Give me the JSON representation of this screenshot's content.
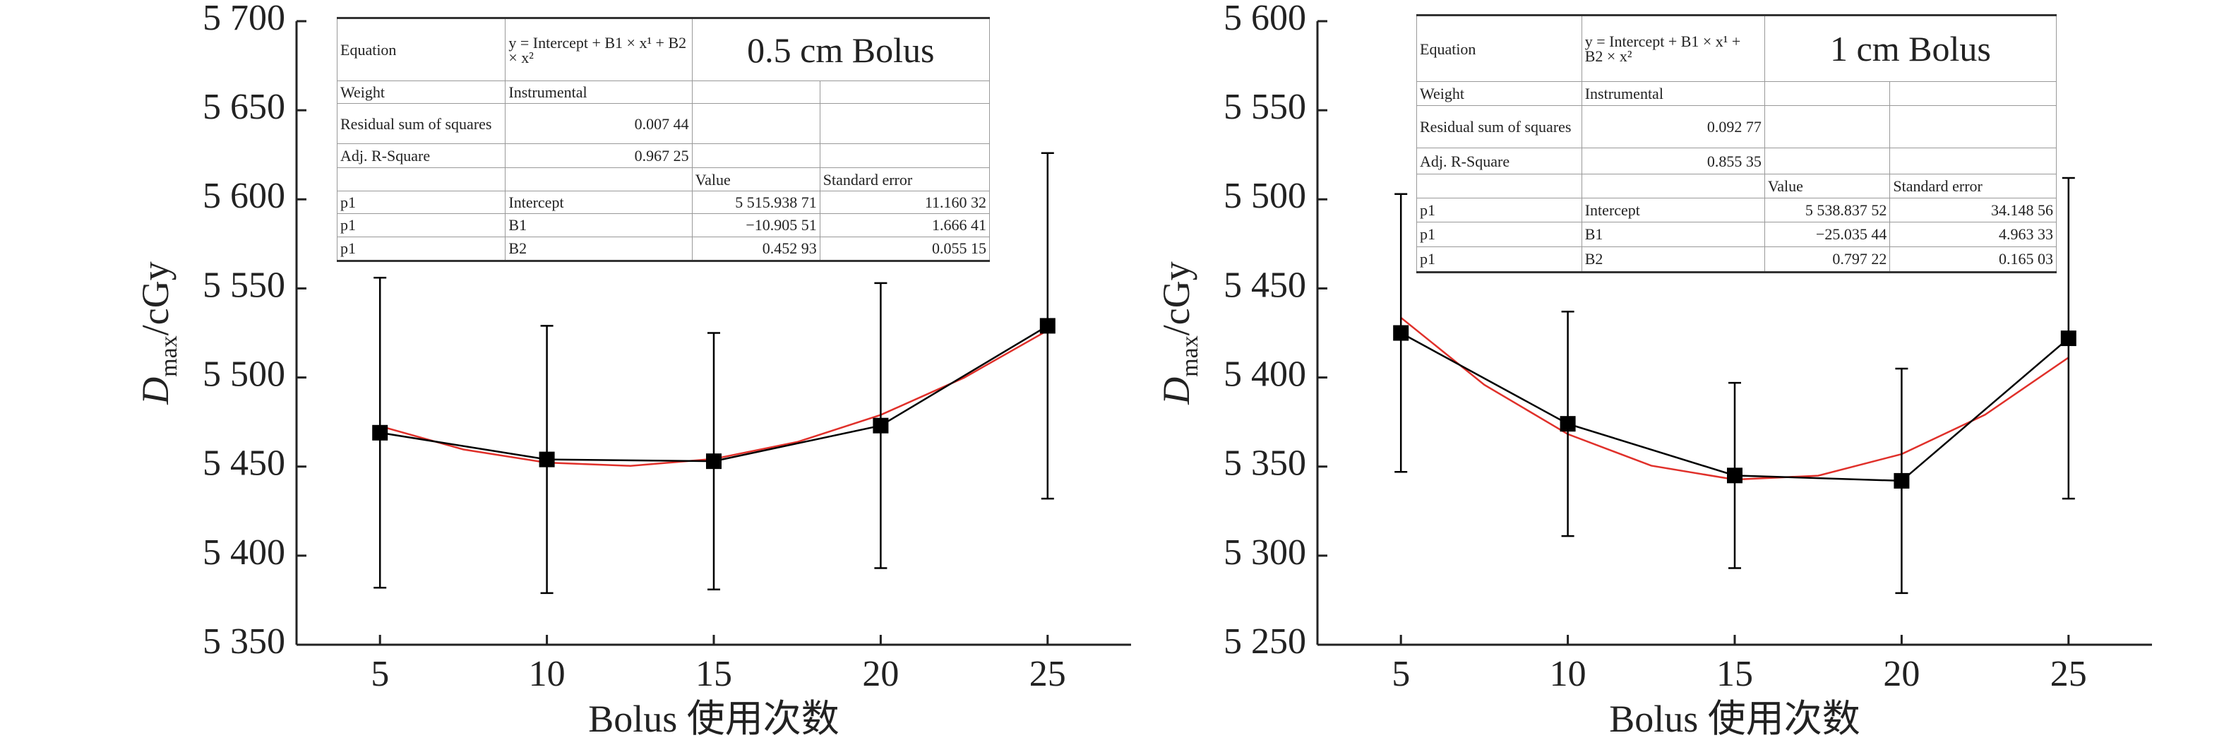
{
  "chart_data": [
    {
      "type": "line",
      "title": "0.5 cm Bolus",
      "xlabel": "Bolus 使用次数",
      "ylabel": {
        "symbol": "D",
        "subscript": "max",
        "unit": "/cGy"
      },
      "xlim": [
        2.5,
        27.5
      ],
      "xticks": [
        5,
        10,
        15,
        20,
        25
      ],
      "ylim": [
        5350,
        5700
      ],
      "yticks": [
        {
          "value": 5350,
          "label": "5 350"
        },
        {
          "value": 5400,
          "label": "5 400"
        },
        {
          "value": 5450,
          "label": "5 450"
        },
        {
          "value": 5500,
          "label": "5 500"
        },
        {
          "value": 5550,
          "label": "5 550"
        },
        {
          "value": 5600,
          "label": "5 600"
        },
        {
          "value": 5650,
          "label": "5 650"
        },
        {
          "value": 5700,
          "label": "5 700"
        }
      ],
      "series": [
        {
          "color": "#000000",
          "marker": "square",
          "x": [
            5,
            10,
            15,
            20,
            25
          ],
          "values": [
            5469,
            5454,
            5453,
            5473,
            5529
          ],
          "errors": [
            87,
            75,
            72,
            80,
            97
          ]
        },
        {
          "color": "#e0302a",
          "x": [
            5,
            7.5,
            10,
            12.5,
            15,
            17.5,
            20,
            22.5,
            25
          ],
          "values": [
            5472.7,
            5459.6,
            5452.2,
            5450.4,
            5454.3,
            5463.8,
            5479.0,
            5499.9,
            5526.4
          ]
        }
      ],
      "fit_table": {
        "equation_label": "Equation",
        "equation": "y = Intercept + B1 × x¹ + B2 × x²",
        "stats": [
          [
            "Weight",
            "Instrumental"
          ],
          [
            "Residual sum of squares",
            "0.007 44"
          ],
          [
            "Adj. R-Square",
            "0.967 25"
          ]
        ],
        "columns": [
          "Value",
          "Standard error"
        ],
        "params": [
          [
            "p1",
            "Intercept",
            "5 515.938 71",
            "11.160 32"
          ],
          [
            "p1",
            "B1",
            "−10.905 51",
            "1.666 41"
          ],
          [
            "p1",
            "B2",
            "0.452 93",
            "0.055 15"
          ]
        ]
      }
    },
    {
      "type": "line",
      "title": "1 cm Bolus",
      "xlabel": "Bolus 使用次数",
      "ylabel": {
        "symbol": "D",
        "subscript": "max",
        "unit": "/cGy"
      },
      "xlim": [
        2.5,
        27.5
      ],
      "xticks": [
        5,
        10,
        15,
        20,
        25
      ],
      "ylim": [
        5250,
        5600
      ],
      "yticks": [
        {
          "value": 5250,
          "label": "5 250"
        },
        {
          "value": 5300,
          "label": "5 300"
        },
        {
          "value": 5350,
          "label": "5 350"
        },
        {
          "value": 5400,
          "label": "5 400"
        },
        {
          "value": 5450,
          "label": "5 450"
        },
        {
          "value": 5500,
          "label": "5 500"
        },
        {
          "value": 5550,
          "label": "5 550"
        },
        {
          "value": 5600,
          "label": "5 600"
        }
      ],
      "series": [
        {
          "color": "#000000",
          "marker": "square",
          "x": [
            5,
            10,
            15,
            20,
            25
          ],
          "values": [
            5425,
            5374,
            5345,
            5342,
            5422
          ],
          "errors": [
            78,
            63,
            52,
            63,
            90
          ]
        },
        {
          "color": "#e0302a",
          "x": [
            5,
            7.5,
            10,
            12.5,
            15,
            17.5,
            20,
            22.5,
            25
          ],
          "values": [
            5433.6,
            5395.9,
            5368.2,
            5350.5,
            5342.7,
            5344.9,
            5357.0,
            5379.1,
            5411.2
          ]
        }
      ],
      "fit_table": {
        "equation_label": "Equation",
        "equation": "y = Intercept + B1 × x¹ + B2 × x²",
        "stats": [
          [
            "Weight",
            "Instrumental"
          ],
          [
            "Residual sum of squares",
            "0.092 77"
          ],
          [
            "Adj. R-Square",
            "0.855 35"
          ]
        ],
        "columns": [
          "Value",
          "Standard error"
        ],
        "params": [
          [
            "p1",
            "Intercept",
            "5 538.837 52",
            "34.148 56"
          ],
          [
            "p1",
            "B1",
            "−25.035 44",
            "4.963 33"
          ],
          [
            "p1",
            "B2",
            "0.797 22",
            "0.165 03"
          ]
        ]
      }
    }
  ]
}
